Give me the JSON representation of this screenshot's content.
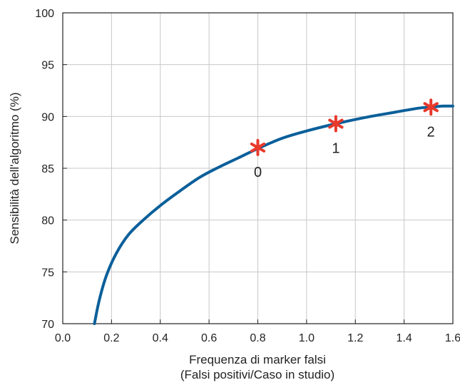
{
  "chart_data": {
    "type": "line",
    "title": "",
    "xlabel_line1": "Frequenza di marker falsi",
    "xlabel_line2": "(Falsi positivi/Caso in studio)",
    "ylabel": "Sensibilità dell'algoritmo (%)",
    "xlim": [
      0.0,
      1.6
    ],
    "ylim": [
      70,
      100
    ],
    "xticks": [
      "0.0",
      "0.2",
      "0.4",
      "0.6",
      "0.8",
      "1.0",
      "1.2",
      "1.4",
      "1.6"
    ],
    "yticks": [
      "70",
      "75",
      "80",
      "85",
      "90",
      "95",
      "100"
    ],
    "grid": true,
    "series": [
      {
        "x": [
          0.13,
          0.15,
          0.18,
          0.22,
          0.27,
          0.33,
          0.4,
          0.48,
          0.56,
          0.64,
          0.72,
          0.8,
          0.9,
          1.0,
          1.12,
          1.24,
          1.36,
          1.46,
          1.51,
          1.56,
          1.6
        ],
        "y": [
          70.0,
          72.3,
          74.7,
          76.8,
          78.6,
          80.0,
          81.4,
          82.8,
          84.1,
          85.1,
          86.0,
          86.9,
          87.9,
          88.6,
          89.3,
          89.9,
          90.4,
          90.8,
          90.9,
          91.0,
          91.0
        ],
        "color": "#0a5f9a"
      }
    ],
    "markers": [
      {
        "x": 0.8,
        "y": 87.0,
        "label": "0"
      },
      {
        "x": 1.12,
        "y": 89.3,
        "label": "1"
      },
      {
        "x": 1.51,
        "y": 90.9,
        "label": "2"
      }
    ],
    "marker_color": "#e8392b"
  }
}
